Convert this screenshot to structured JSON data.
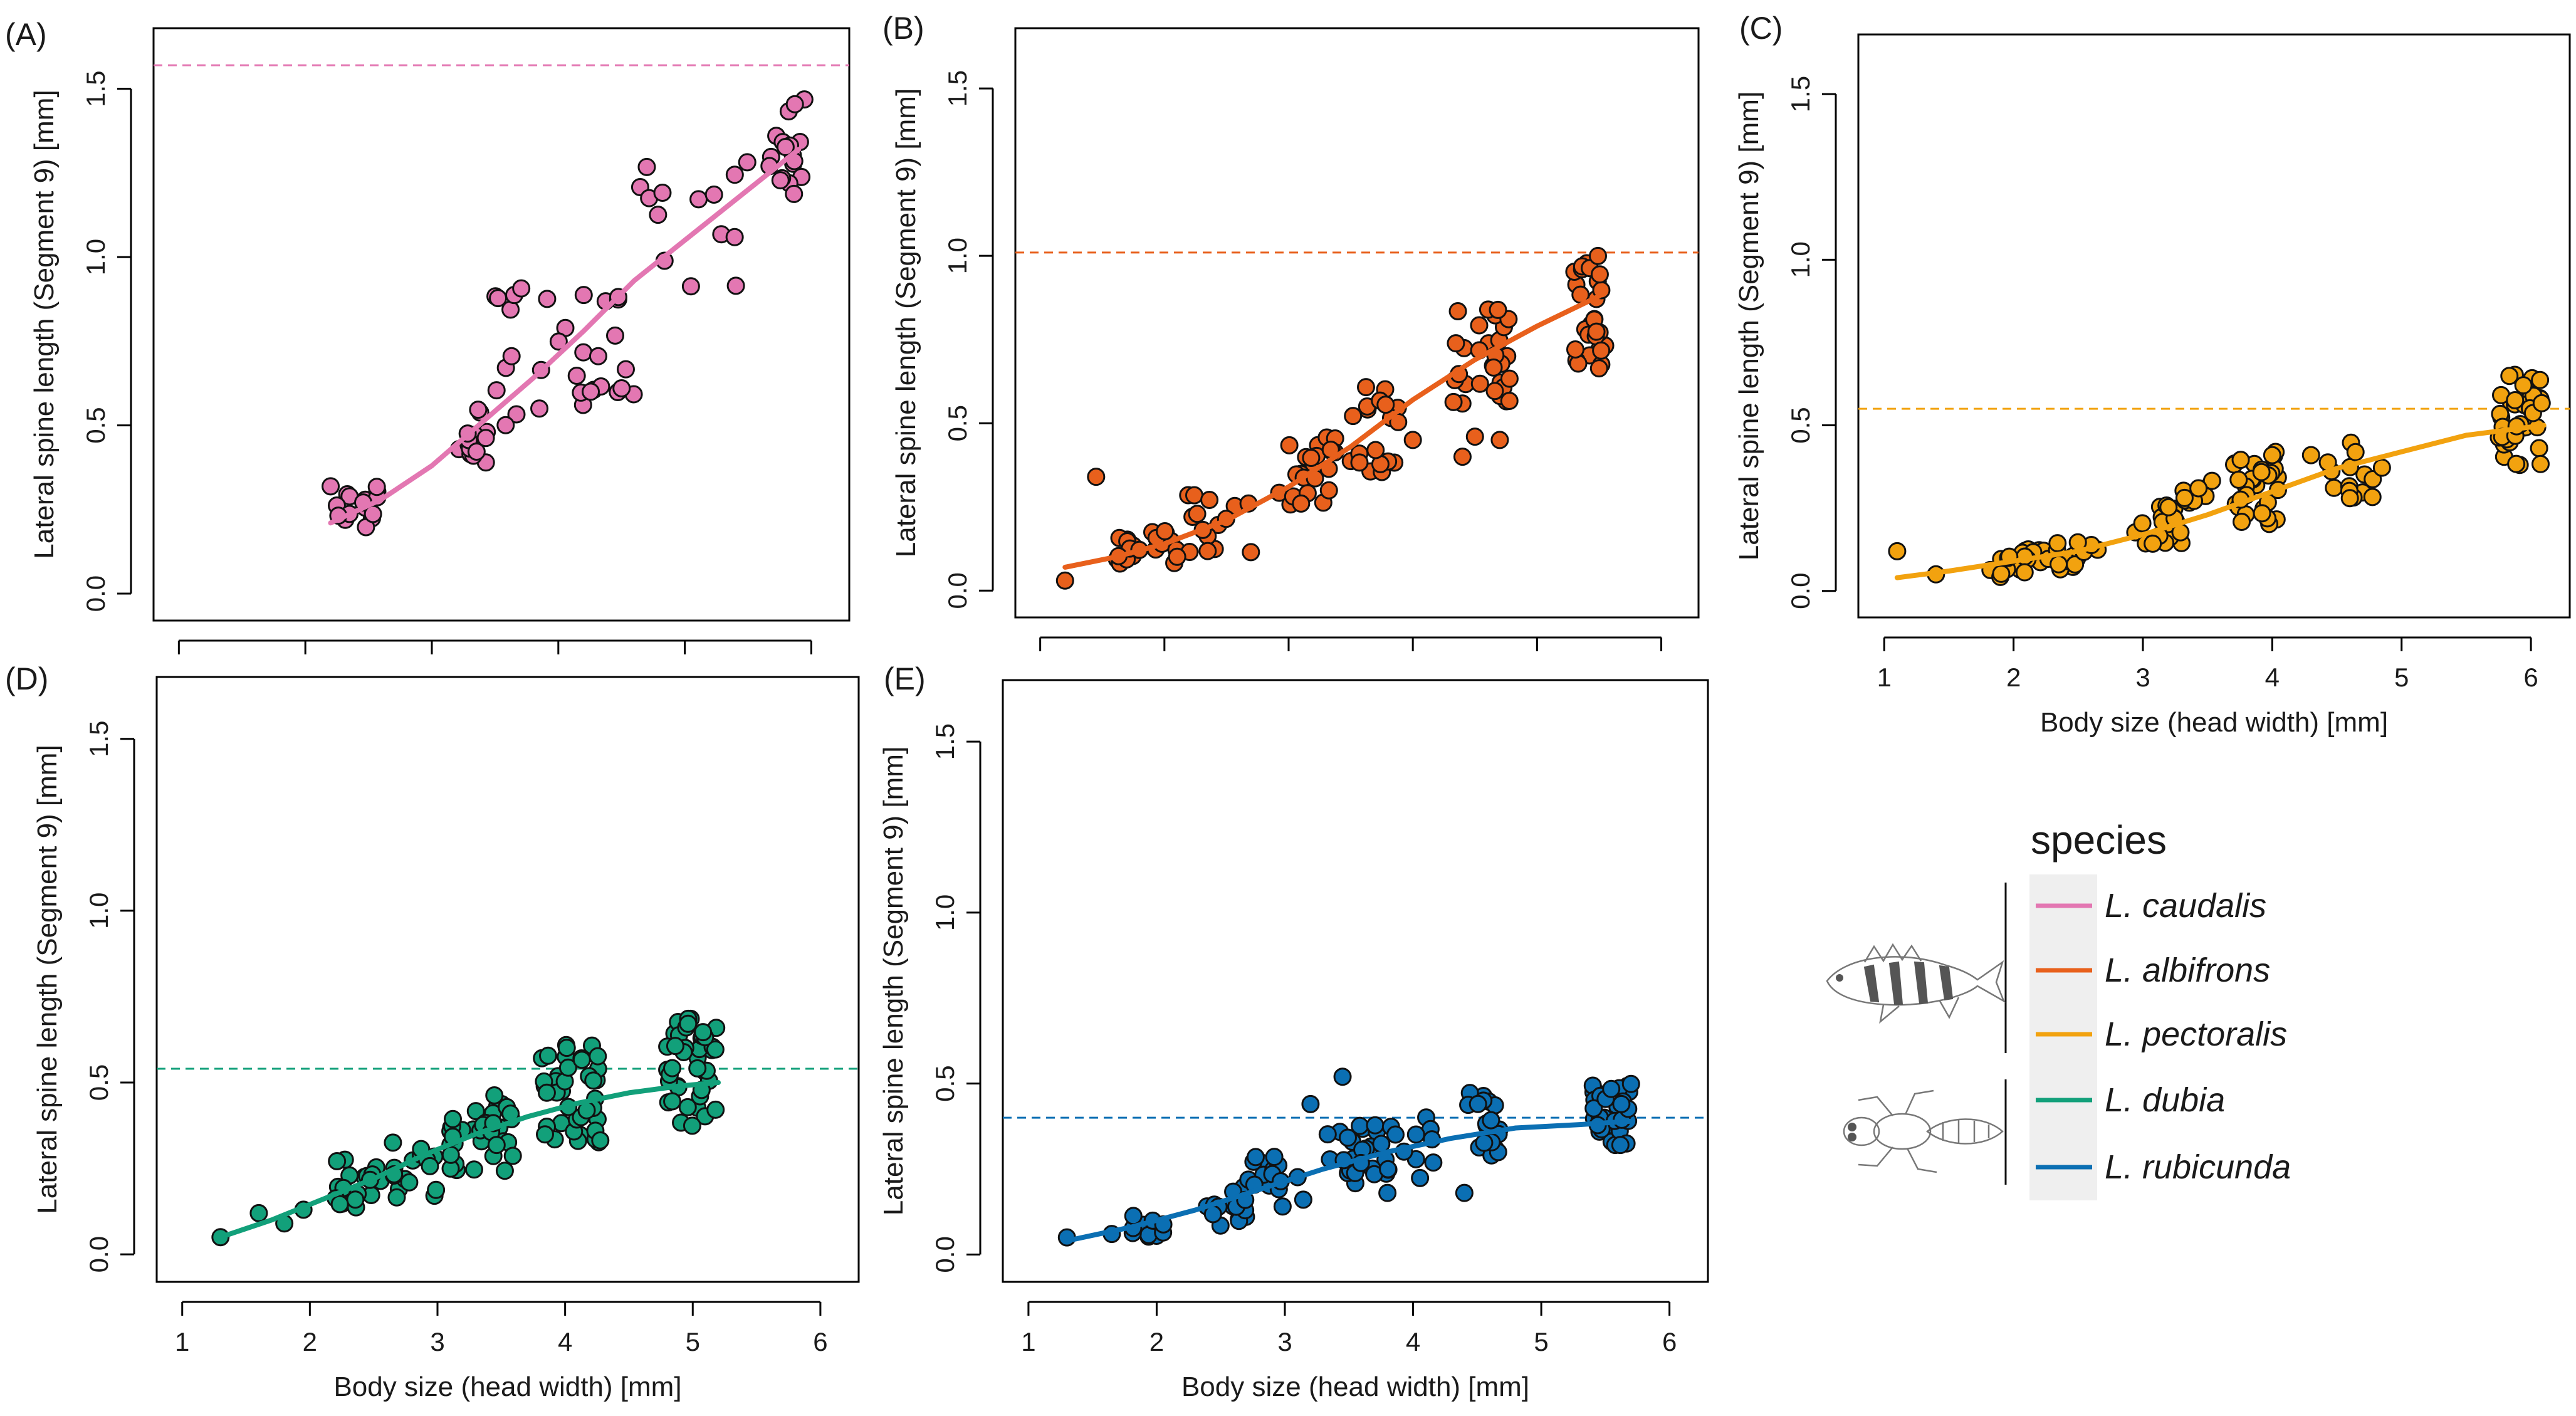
{
  "legend": {
    "title": "species",
    "predator_groups": [
      {
        "icon_name": "fish-predator-icon",
        "species_indices": [
          0,
          1,
          2
        ]
      },
      {
        "icon_name": "dragonfly-larva-predator-icon",
        "species_indices": [
          3,
          4
        ]
      }
    ]
  },
  "species": [
    {
      "name": "L. caudalis",
      "color": "#e377b2"
    },
    {
      "name": "L. albifrons",
      "color": "#e8601c"
    },
    {
      "name": "L. pectoralis",
      "color": "#f2a20f"
    },
    {
      "name": "L. dubia",
      "color": "#12a07a"
    },
    {
      "name": "L. rubicunda",
      "color": "#0b6fb3"
    }
  ],
  "chart_data": [
    {
      "panel": "(A)",
      "type": "scatter",
      "species_index": 0,
      "xlabel": "",
      "ylabel": "Lateral spine length (Segment 9) [mm]",
      "xlim": [
        0.8,
        6.3
      ],
      "ylim": [
        -0.08,
        1.68
      ],
      "xticks": [
        1,
        2,
        3,
        4,
        5,
        6
      ],
      "yticks": [
        "0.0",
        "0.5",
        "1.0",
        "1.5"
      ],
      "show_x_labels": false,
      "reference_line": 1.57,
      "fit_x": [
        2.2,
        2.6,
        3.0,
        3.4,
        3.8,
        4.2,
        4.6,
        5.0,
        5.4,
        5.9
      ],
      "fit_y": [
        0.21,
        0.28,
        0.38,
        0.51,
        0.64,
        0.78,
        0.93,
        1.05,
        1.17,
        1.32
      ],
      "clusters": [
        {
          "x": [
            2.2,
            2.6
          ],
          "y": [
            0.19,
            0.33
          ],
          "n": 18
        },
        {
          "x": [
            3.2,
            3.45
          ],
          "y": [
            0.38,
            0.56
          ],
          "n": 15
        },
        {
          "x": [
            3.5,
            4.6
          ],
          "y": [
            0.5,
            0.92
          ],
          "n": 30
        },
        {
          "x": [
            4.6,
            5.5
          ],
          "y": [
            0.9,
            1.3
          ],
          "n": 14
        },
        {
          "x": [
            5.6,
            5.95
          ],
          "y": [
            1.18,
            1.47
          ],
          "n": 18
        }
      ],
      "outliers": [
        [
          4.5,
          0.61
        ],
        [
          3.85,
          0.55
        ]
      ]
    },
    {
      "panel": "(B)",
      "type": "scatter",
      "species_index": 1,
      "xlabel": "",
      "ylabel": "Lateral spine length (Segment 9) [mm]",
      "xlim": [
        0.8,
        6.3
      ],
      "ylim": [
        -0.08,
        1.68
      ],
      "xticks": [
        1,
        2,
        3,
        4,
        5,
        6
      ],
      "yticks": [
        "0.0",
        "0.5",
        "1.0",
        "1.5"
      ],
      "show_x_labels": false,
      "reference_line": 1.01,
      "fit_x": [
        1.2,
        1.6,
        2.0,
        2.5,
        3.0,
        3.5,
        4.0,
        4.5,
        5.0,
        5.5
      ],
      "fit_y": [
        0.07,
        0.1,
        0.14,
        0.21,
        0.31,
        0.43,
        0.57,
        0.69,
        0.79,
        0.88
      ],
      "clusters": [
        {
          "x": [
            1.6,
            2.1
          ],
          "y": [
            0.08,
            0.18
          ],
          "n": 22
        },
        {
          "x": [
            2.1,
            2.7
          ],
          "y": [
            0.1,
            0.3
          ],
          "n": 16
        },
        {
          "x": [
            2.8,
            3.4
          ],
          "y": [
            0.24,
            0.46
          ],
          "n": 22
        },
        {
          "x": [
            3.5,
            3.9
          ],
          "y": [
            0.35,
            0.63
          ],
          "n": 18
        },
        {
          "x": [
            4.3,
            4.8
          ],
          "y": [
            0.55,
            0.85
          ],
          "n": 30
        },
        {
          "x": [
            5.3,
            5.55
          ],
          "y": [
            0.66,
            1.01
          ],
          "n": 30
        }
      ],
      "outliers": [
        [
          1.45,
          0.34
        ],
        [
          1.2,
          0.03
        ],
        [
          4.0,
          0.45
        ],
        [
          4.4,
          0.4
        ],
        [
          4.5,
          0.46
        ],
        [
          3.7,
          0.42
        ],
        [
          3.1,
          0.26
        ],
        [
          4.7,
          0.45
        ]
      ]
    },
    {
      "panel": "(C)",
      "type": "scatter",
      "species_index": 2,
      "xlabel": "Body size (head width) [mm]",
      "ylabel": "Lateral spine length (Segment 9) [mm]",
      "xlim": [
        0.8,
        6.3
      ],
      "ylim": [
        -0.08,
        1.68
      ],
      "xticks": [
        1,
        2,
        3,
        4,
        5,
        6
      ],
      "yticks": [
        "0.0",
        "0.5",
        "1.0",
        "1.5"
      ],
      "show_x_labels": true,
      "reference_line": 0.55,
      "fit_x": [
        1.1,
        1.5,
        2.0,
        2.5,
        3.0,
        3.5,
        4.0,
        4.5,
        5.0,
        5.5,
        6.1
      ],
      "fit_y": [
        0.04,
        0.06,
        0.09,
        0.12,
        0.17,
        0.23,
        0.3,
        0.37,
        0.42,
        0.47,
        0.5
      ],
      "clusters": [
        {
          "x": [
            1.8,
            2.3
          ],
          "y": [
            0.04,
            0.14
          ],
          "n": 22
        },
        {
          "x": [
            2.3,
            2.7
          ],
          "y": [
            0.06,
            0.16
          ],
          "n": 14
        },
        {
          "x": [
            2.9,
            3.3
          ],
          "y": [
            0.14,
            0.26
          ],
          "n": 24
        },
        {
          "x": [
            3.3,
            3.6
          ],
          "y": [
            0.24,
            0.35
          ],
          "n": 10
        },
        {
          "x": [
            3.7,
            4.05
          ],
          "y": [
            0.2,
            0.42
          ],
          "n": 30
        },
        {
          "x": [
            4.4,
            4.85
          ],
          "y": [
            0.28,
            0.45
          ],
          "n": 14
        },
        {
          "x": [
            5.75,
            6.1
          ],
          "y": [
            0.38,
            0.66
          ],
          "n": 40
        }
      ],
      "outliers": [
        [
          1.1,
          0.12
        ],
        [
          1.4,
          0.05
        ],
        [
          4.0,
          0.41
        ],
        [
          4.3,
          0.41
        ],
        [
          4.6,
          0.28
        ]
      ]
    },
    {
      "panel": "(D)",
      "type": "scatter",
      "species_index": 3,
      "xlabel": "Body size (head width) [mm]",
      "ylabel": "Lateral spine length (Segment 9) [mm]",
      "xlim": [
        0.8,
        6.3
      ],
      "ylim": [
        -0.08,
        1.68
      ],
      "xticks": [
        1,
        2,
        3,
        4,
        5,
        6
      ],
      "yticks": [
        "0.0",
        "0.5",
        "1.0",
        "1.5"
      ],
      "show_x_labels": true,
      "reference_line": 0.54,
      "fit_x": [
        1.3,
        1.7,
        2.1,
        2.5,
        2.9,
        3.3,
        3.7,
        4.1,
        4.5,
        4.9,
        5.2
      ],
      "fit_y": [
        0.05,
        0.1,
        0.16,
        0.22,
        0.29,
        0.35,
        0.4,
        0.44,
        0.47,
        0.49,
        0.5
      ],
      "clusters": [
        {
          "x": [
            2.2,
            2.6
          ],
          "y": [
            0.13,
            0.28
          ],
          "n": 18
        },
        {
          "x": [
            2.6,
            3.0
          ],
          "y": [
            0.16,
            0.34
          ],
          "n": 16
        },
        {
          "x": [
            3.1,
            3.6
          ],
          "y": [
            0.24,
            0.47
          ],
          "n": 36
        },
        {
          "x": [
            3.8,
            4.3
          ],
          "y": [
            0.32,
            0.62
          ],
          "n": 40
        },
        {
          "x": [
            4.8,
            5.2
          ],
          "y": [
            0.37,
            0.69
          ],
          "n": 44
        }
      ],
      "outliers": [
        [
          1.6,
          0.12
        ],
        [
          1.8,
          0.09
        ],
        [
          1.95,
          0.13
        ],
        [
          1.3,
          0.05
        ]
      ]
    },
    {
      "panel": "(E)",
      "type": "scatter",
      "species_index": 4,
      "xlabel": "Body size (head width) [mm]",
      "ylabel": "Lateral spine length (Segment 9) [mm]",
      "xlim": [
        0.8,
        6.3
      ],
      "ylim": [
        -0.08,
        1.68
      ],
      "xticks": [
        1,
        2,
        3,
        4,
        5,
        6
      ],
      "yticks": [
        "0.0",
        "0.5",
        "1.0",
        "1.5"
      ],
      "show_x_labels": true,
      "reference_line": 0.4,
      "fit_x": [
        1.3,
        1.8,
        2.3,
        2.8,
        3.3,
        3.8,
        4.3,
        4.8,
        5.3,
        5.7
      ],
      "fit_y": [
        0.04,
        0.08,
        0.13,
        0.19,
        0.25,
        0.3,
        0.34,
        0.37,
        0.38,
        0.39
      ],
      "clusters": [
        {
          "x": [
            1.8,
            2.1
          ],
          "y": [
            0.05,
            0.12
          ],
          "n": 10
        },
        {
          "x": [
            2.3,
            2.7
          ],
          "y": [
            0.08,
            0.2
          ],
          "n": 14
        },
        {
          "x": [
            2.7,
            3.2
          ],
          "y": [
            0.14,
            0.3
          ],
          "n": 16
        },
        {
          "x": [
            3.3,
            3.8
          ],
          "y": [
            0.2,
            0.38
          ],
          "n": 24
        },
        {
          "x": [
            3.8,
            4.2
          ],
          "y": [
            0.22,
            0.44
          ],
          "n": 12
        },
        {
          "x": [
            4.4,
            4.7
          ],
          "y": [
            0.27,
            0.48
          ],
          "n": 18
        },
        {
          "x": [
            5.4,
            5.7
          ],
          "y": [
            0.32,
            0.5
          ],
          "n": 34
        }
      ],
      "outliers": [
        [
          1.3,
          0.05
        ],
        [
          1.65,
          0.06
        ],
        [
          3.45,
          0.52
        ],
        [
          4.4,
          0.18
        ],
        [
          3.8,
          0.18
        ],
        [
          3.2,
          0.44
        ]
      ]
    }
  ]
}
